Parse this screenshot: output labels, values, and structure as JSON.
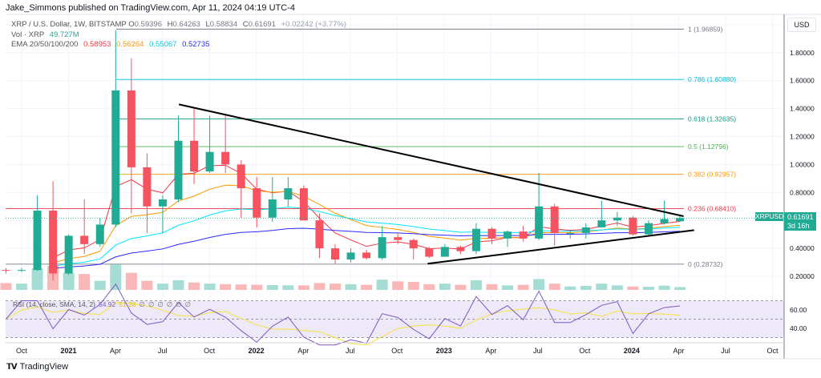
{
  "header": {
    "publisher": "Jake_Simmons published on TradingView.com, Apr 11, 2024 04:19 UTC-4",
    "symbol_line": "XRP / U.S. Dollar, 1W, BITSTAMP",
    "ohlc": {
      "o_label": "O",
      "o": "0.59396",
      "h_label": "H",
      "h": "0.64263",
      "l_label": "L",
      "l": "0.58834",
      "c_label": "C",
      "c": "0.61691",
      "change": "+0.02242 (+3.77%)"
    },
    "vol_label": "Vol · XRP",
    "vol_value": "49.727M",
    "ema_label": "EMA 20/50/100/200",
    "ema_values": [
      "0.58953",
      "0.56264",
      "0.55067",
      "0.52735"
    ],
    "ema_colors": [
      "#f23645",
      "#ff9800",
      "#00e5ff",
      "#2929ff"
    ]
  },
  "price_axis": {
    "currency": "USD",
    "ticks": [
      "1.80000",
      "1.60000",
      "1.40000",
      "1.20000",
      "1.00000",
      "0.80000",
      "0.40000",
      "0.20000"
    ],
    "symbol_tag": "XRPUSD",
    "last_price": "0.61691",
    "countdown": "3d 16h"
  },
  "rsi": {
    "label": "RSI (14, close, SMA, 14, 2)",
    "value": "54.92",
    "sma_value": "51.28",
    "empty_values": [
      "∅",
      "∅",
      "∅",
      "∅",
      "∅",
      "∅"
    ],
    "ticks": [
      "60.00",
      "40.00"
    ],
    "line_color": "#7e57c2",
    "sma_color": "#f5e23c"
  },
  "time_axis": [
    "Oct",
    "2021",
    "Apr",
    "Jul",
    "Oct",
    "2022",
    "Apr",
    "Jul",
    "Oct",
    "2023",
    "Apr",
    "Jul",
    "Oct",
    "2024",
    "Apr",
    "Jul",
    "Oct"
  ],
  "footer": {
    "brand": "TradingView",
    "logo": "TV"
  },
  "colors": {
    "up": "#22ab94",
    "down": "#f7525f",
    "vol_up": "#8fd3c8",
    "vol_down": "#f9a5a5",
    "rsi_bg": "#ede9f8"
  },
  "chart_data": {
    "type": "candlestick",
    "symbol": "XRPUSD",
    "interval": "1W",
    "ylim": [
      0.05,
      2.05
    ],
    "fib_levels": [
      {
        "ratio": "1",
        "price": 1.96859,
        "label": "1 (1.96859)",
        "color": "#787b86"
      },
      {
        "ratio": "0.786",
        "price": 1.6088,
        "label": "0.786 (1.60880)",
        "color": "#00bcd4"
      },
      {
        "ratio": "0.618",
        "price": 1.32635,
        "label": "0.618 (1.32635)",
        "color": "#089981"
      },
      {
        "ratio": "0.5",
        "price": 1.12796,
        "label": "0.5 (1.12796)",
        "color": "#4caf50"
      },
      {
        "ratio": "0.382",
        "price": 0.92957,
        "label": "0.382 (0.92957)",
        "color": "#ff9800"
      },
      {
        "ratio": "0.236",
        "price": 0.6841,
        "label": "0.236 (0.68410)",
        "color": "#f23645"
      },
      {
        "ratio": "0",
        "price": 0.28732,
        "label": "0 (0.28732)",
        "color": "#787b86"
      }
    ],
    "trendlines": [
      {
        "from": [
          "2021-08-16",
          1.43
        ],
        "to": [
          "2024-04-22",
          0.63
        ]
      },
      {
        "from": [
          "2022-12-12",
          0.29
        ],
        "to": [
          "2024-05-12",
          0.53
        ]
      }
    ],
    "candles": [
      {
        "t": "2020-09",
        "o": 0.245,
        "h": 0.26,
        "l": 0.22,
        "c": 0.24,
        "v": 120
      },
      {
        "t": "2020-10",
        "o": 0.24,
        "h": 0.26,
        "l": 0.23,
        "c": 0.245,
        "v": 110
      },
      {
        "t": "2020-11",
        "o": 0.245,
        "h": 0.78,
        "l": 0.24,
        "c": 0.67,
        "v": 380
      },
      {
        "t": "2020-12",
        "o": 0.67,
        "h": 0.88,
        "l": 0.17,
        "c": 0.22,
        "v": 420
      },
      {
        "t": "2021-01",
        "o": 0.22,
        "h": 0.5,
        "l": 0.21,
        "c": 0.49,
        "v": 300
      },
      {
        "t": "2021-02",
        "o": 0.49,
        "h": 0.75,
        "l": 0.36,
        "c": 0.43,
        "v": 280
      },
      {
        "t": "2021-03",
        "o": 0.43,
        "h": 0.62,
        "l": 0.41,
        "c": 0.57,
        "v": 160
      },
      {
        "t": "2021-04",
        "o": 0.57,
        "h": 1.96,
        "l": 0.55,
        "c": 1.53,
        "v": 450
      },
      {
        "t": "2021-05",
        "o": 1.53,
        "h": 1.76,
        "l": 0.65,
        "c": 0.98,
        "v": 300
      },
      {
        "t": "2021-06",
        "o": 0.98,
        "h": 1.08,
        "l": 0.51,
        "c": 0.7,
        "v": 160
      },
      {
        "t": "2021-07",
        "o": 0.7,
        "h": 0.78,
        "l": 0.51,
        "c": 0.75,
        "v": 110
      },
      {
        "t": "2021-08",
        "o": 0.75,
        "h": 1.35,
        "l": 0.73,
        "c": 1.17,
        "v": 170
      },
      {
        "t": "2021-09",
        "o": 1.17,
        "h": 1.41,
        "l": 0.86,
        "c": 0.95,
        "v": 130
      },
      {
        "t": "2021-10",
        "o": 0.95,
        "h": 1.35,
        "l": 0.94,
        "c": 1.09,
        "v": 110
      },
      {
        "t": "2021-11",
        "o": 1.09,
        "h": 1.35,
        "l": 0.94,
        "c": 1.0,
        "v": 100
      },
      {
        "t": "2021-12",
        "o": 1.0,
        "h": 1.03,
        "l": 0.62,
        "c": 0.83,
        "v": 95
      },
      {
        "t": "2022-01",
        "o": 0.83,
        "h": 0.91,
        "l": 0.55,
        "c": 0.62,
        "v": 90
      },
      {
        "t": "2022-02",
        "o": 0.62,
        "h": 0.91,
        "l": 0.59,
        "c": 0.75,
        "v": 85
      },
      {
        "t": "2022-03",
        "o": 0.75,
        "h": 0.91,
        "l": 0.7,
        "c": 0.83,
        "v": 80
      },
      {
        "t": "2022-04",
        "o": 0.83,
        "h": 0.85,
        "l": 0.6,
        "c": 0.6,
        "v": 80
      },
      {
        "t": "2022-05",
        "o": 0.6,
        "h": 0.65,
        "l": 0.33,
        "c": 0.4,
        "v": 120
      },
      {
        "t": "2022-06",
        "o": 0.4,
        "h": 0.43,
        "l": 0.29,
        "c": 0.32,
        "v": 110
      },
      {
        "t": "2022-07",
        "o": 0.32,
        "h": 0.4,
        "l": 0.3,
        "c": 0.37,
        "v": 100
      },
      {
        "t": "2022-08",
        "o": 0.37,
        "h": 0.39,
        "l": 0.32,
        "c": 0.33,
        "v": 90
      },
      {
        "t": "2022-09",
        "o": 0.33,
        "h": 0.56,
        "l": 0.32,
        "c": 0.48,
        "v": 180
      },
      {
        "t": "2022-10",
        "o": 0.48,
        "h": 0.51,
        "l": 0.43,
        "c": 0.46,
        "v": 150
      },
      {
        "t": "2022-11",
        "o": 0.46,
        "h": 0.47,
        "l": 0.32,
        "c": 0.4,
        "v": 140
      },
      {
        "t": "2022-12",
        "o": 0.4,
        "h": 0.41,
        "l": 0.33,
        "c": 0.34,
        "v": 100
      },
      {
        "t": "2023-01",
        "o": 0.34,
        "h": 0.43,
        "l": 0.34,
        "c": 0.41,
        "v": 110
      },
      {
        "t": "2023-02",
        "o": 0.41,
        "h": 0.42,
        "l": 0.36,
        "c": 0.38,
        "v": 90
      },
      {
        "t": "2023-03",
        "o": 0.38,
        "h": 0.58,
        "l": 0.36,
        "c": 0.54,
        "v": 170
      },
      {
        "t": "2023-04",
        "o": 0.54,
        "h": 0.55,
        "l": 0.43,
        "c": 0.47,
        "v": 100
      },
      {
        "t": "2023-05",
        "o": 0.47,
        "h": 0.53,
        "l": 0.41,
        "c": 0.52,
        "v": 80
      },
      {
        "t": "2023-06",
        "o": 0.52,
        "h": 0.56,
        "l": 0.45,
        "c": 0.47,
        "v": 90
      },
      {
        "t": "2023-07",
        "o": 0.47,
        "h": 0.94,
        "l": 0.46,
        "c": 0.7,
        "v": 190
      },
      {
        "t": "2023-08",
        "o": 0.7,
        "h": 0.72,
        "l": 0.42,
        "c": 0.51,
        "v": 110
      },
      {
        "t": "2023-09",
        "o": 0.51,
        "h": 0.53,
        "l": 0.47,
        "c": 0.51,
        "v": 60
      },
      {
        "t": "2023-10",
        "o": 0.51,
        "h": 0.58,
        "l": 0.47,
        "c": 0.55,
        "v": 70
      },
      {
        "t": "2023-11",
        "o": 0.55,
        "h": 0.74,
        "l": 0.55,
        "c": 0.6,
        "v": 110
      },
      {
        "t": "2023-12",
        "o": 0.6,
        "h": 0.66,
        "l": 0.56,
        "c": 0.62,
        "v": 80
      },
      {
        "t": "2024-01",
        "o": 0.62,
        "h": 0.63,
        "l": 0.49,
        "c": 0.5,
        "v": 60
      },
      {
        "t": "2024-02",
        "o": 0.5,
        "h": 0.6,
        "l": 0.49,
        "c": 0.58,
        "v": 55
      },
      {
        "t": "2024-03",
        "o": 0.58,
        "h": 0.74,
        "l": 0.57,
        "c": 0.61,
        "v": 75
      },
      {
        "t": "2024-04",
        "o": 0.59396,
        "h": 0.64263,
        "l": 0.58834,
        "c": 0.61691,
        "v": 49.727
      }
    ]
  }
}
